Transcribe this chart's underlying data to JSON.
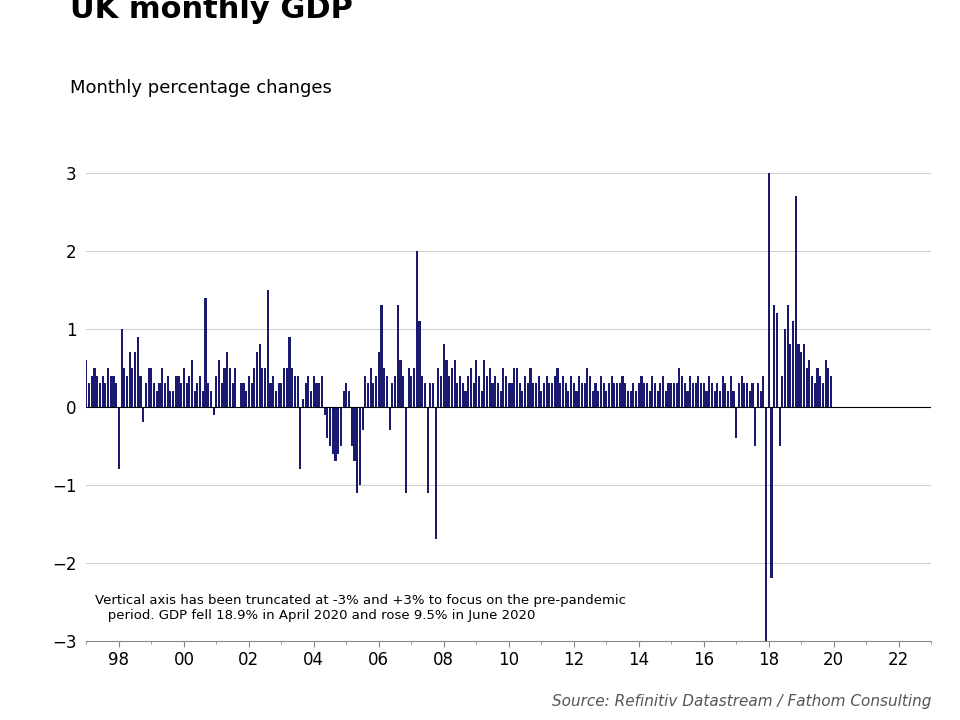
{
  "title": "UK monthly GDP",
  "subtitle": "Monthly percentage changes",
  "source": "Source: Refinitiv Datastream / Fathom Consulting",
  "annotation": "Vertical axis has been truncated at -3% and +3% to focus on the pre-pandemic\n   period. GDP fell 18.9% in April 2020 and rose 9.5% in June 2020",
  "ylim": [
    -3,
    3
  ],
  "yticks": [
    -3,
    -2,
    -1,
    0,
    1,
    2,
    3
  ],
  "bar_color": "#1a1a6e",
  "background_color": "#ffffff",
  "title_fontsize": 22,
  "subtitle_fontsize": 13,
  "source_fontsize": 11,
  "start_year": 1997,
  "start_month": 1,
  "values": [
    0.6,
    0.3,
    0.4,
    0.5,
    0.4,
    0.3,
    0.4,
    0.3,
    0.5,
    0.4,
    0.4,
    0.3,
    -0.8,
    1.0,
    0.5,
    0.4,
    0.7,
    0.5,
    0.7,
    0.9,
    0.4,
    -0.2,
    0.3,
    0.5,
    0.5,
    0.3,
    0.2,
    0.3,
    0.5,
    0.3,
    0.4,
    0.2,
    0.2,
    0.4,
    0.4,
    0.3,
    0.5,
    0.3,
    0.4,
    0.6,
    0.2,
    0.3,
    0.4,
    0.2,
    1.4,
    0.3,
    0.2,
    -0.1,
    0.4,
    0.6,
    0.3,
    0.5,
    0.7,
    0.5,
    0.3,
    0.5,
    0.0,
    0.3,
    0.3,
    0.2,
    0.4,
    0.3,
    0.5,
    0.7,
    0.8,
    0.5,
    0.5,
    1.5,
    0.3,
    0.4,
    0.2,
    0.3,
    0.3,
    0.5,
    0.5,
    0.9,
    0.5,
    0.4,
    0.4,
    -0.8,
    0.1,
    0.3,
    0.4,
    0.2,
    0.4,
    0.3,
    0.3,
    0.4,
    -0.1,
    -0.4,
    -0.5,
    -0.6,
    -0.7,
    -0.6,
    -0.5,
    0.2,
    0.3,
    0.2,
    -0.5,
    -0.7,
    -1.1,
    -1.0,
    -0.3,
    0.4,
    0.3,
    0.5,
    0.3,
    0.4,
    0.7,
    1.3,
    0.5,
    0.4,
    -0.3,
    0.3,
    0.4,
    1.3,
    0.6,
    0.4,
    -1.1,
    0.5,
    0.4,
    0.5,
    2.0,
    1.1,
    0.4,
    0.3,
    -1.1,
    0.3,
    0.3,
    -1.7,
    0.5,
    0.4,
    0.8,
    0.6,
    0.4,
    0.5,
    0.6,
    0.3,
    0.4,
    0.3,
    0.2,
    0.4,
    0.5,
    0.3,
    0.6,
    0.4,
    0.2,
    0.6,
    0.4,
    0.5,
    0.3,
    0.4,
    0.3,
    0.2,
    0.5,
    0.4,
    0.3,
    0.3,
    0.5,
    0.5,
    0.3,
    0.2,
    0.4,
    0.3,
    0.5,
    0.3,
    0.3,
    0.4,
    0.2,
    0.3,
    0.4,
    0.3,
    0.3,
    0.4,
    0.5,
    0.3,
    0.4,
    0.3,
    0.2,
    0.4,
    0.3,
    0.2,
    0.4,
    0.3,
    0.3,
    0.5,
    0.4,
    0.2,
    0.3,
    0.2,
    0.4,
    0.3,
    0.2,
    0.3,
    0.4,
    0.3,
    0.3,
    0.3,
    0.4,
    0.3,
    0.2,
    0.2,
    0.3,
    0.2,
    0.3,
    0.4,
    0.3,
    0.3,
    0.2,
    0.4,
    0.3,
    0.2,
    0.3,
    0.4,
    0.2,
    0.3,
    0.3,
    0.3,
    0.3,
    0.5,
    0.4,
    0.3,
    0.2,
    0.4,
    0.3,
    0.3,
    0.4,
    0.3,
    0.3,
    0.2,
    0.4,
    0.3,
    0.2,
    0.3,
    0.2,
    0.4,
    0.3,
    0.2,
    0.4,
    0.2,
    -0.4,
    0.3,
    0.4,
    0.3,
    0.3,
    0.2,
    0.3,
    -0.5,
    0.3,
    0.2,
    0.4,
    -3.0,
    3.0,
    -2.2,
    1.3,
    1.2,
    -0.5,
    0.4,
    1.0,
    1.3,
    0.8,
    1.1,
    2.7,
    0.8,
    0.7,
    0.8,
    0.5,
    0.6,
    0.4,
    0.3,
    0.5,
    0.4,
    0.3,
    0.6,
    0.5,
    0.4
  ]
}
